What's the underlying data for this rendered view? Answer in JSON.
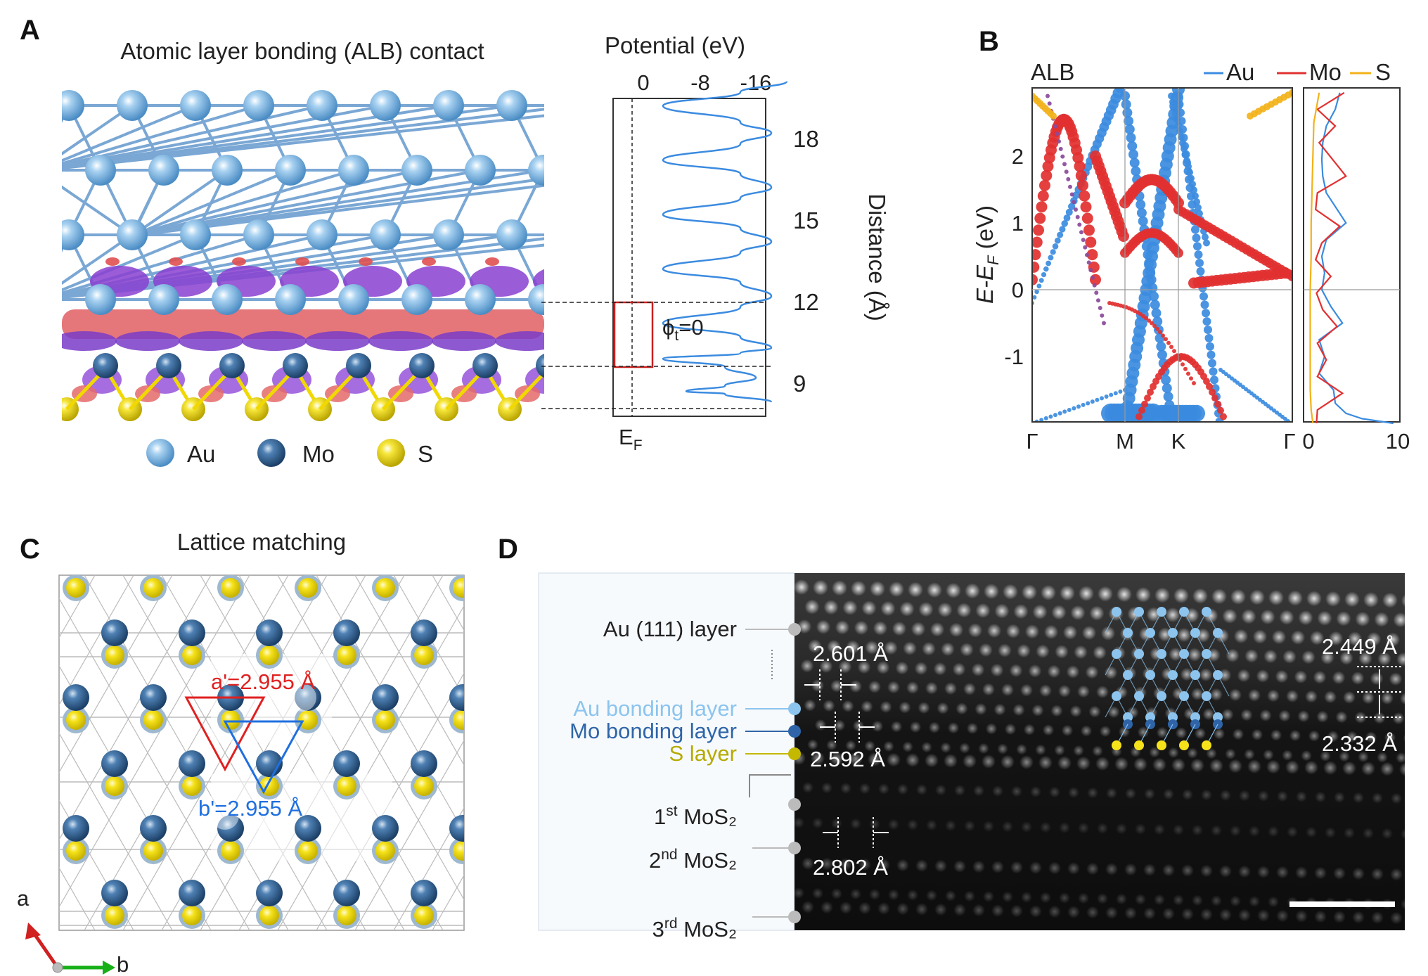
{
  "panels": {
    "a": {
      "label": "A",
      "title": "Atomic layer bonding (ALB) contact",
      "legend": [
        {
          "symbol": "Au",
          "color": "#86bde6"
        },
        {
          "symbol": "Mo",
          "color": "#2f6294"
        },
        {
          "symbol": "S",
          "color": "#f2dc00"
        }
      ],
      "potential_plot": {
        "title": "Potential (eV)",
        "top_ticks": [
          "0",
          "-8",
          "-16"
        ],
        "right_ticks": [
          "18",
          "15",
          "12",
          "9"
        ],
        "right_label": "Distance (Å)",
        "bottom_label": "E",
        "bottom_label_sub": "F",
        "annotation_main": "ϕ",
        "annotation_sub": "t",
        "annotation_tail": "=0"
      }
    },
    "b": {
      "label": "B",
      "tag": "ALB",
      "legend": [
        {
          "name": "Au",
          "color": "#3b8be0"
        },
        {
          "name": "Mo",
          "color": "#e23030"
        },
        {
          "name": "S",
          "color": "#f2b21a"
        }
      ],
      "ylabel_main": "E-E",
      "ylabel_sub": "F",
      "ylabel_tail": " (eV)",
      "y_ticks": [
        "2",
        "1",
        "0",
        "-1"
      ],
      "k_labels": [
        "Γ",
        "M",
        "K",
        "Γ"
      ],
      "dos_ticks": [
        "0",
        "10"
      ]
    },
    "c": {
      "label": "C",
      "title": "Lattice matching",
      "a_prime": "a'=2.955 Å",
      "b_prime": "b'=2.955 Å",
      "axis_a": "a",
      "axis_b": "b"
    },
    "d": {
      "label": "D",
      "layers": [
        {
          "text": "Au (111) layer",
          "sup": "",
          "after": "",
          "color": "#222222"
        },
        {
          "text": "Au bonding layer",
          "sup": "",
          "after": "",
          "color": "#8cc4ee"
        },
        {
          "text": "Mo bonding layer",
          "sup": "",
          "after": "",
          "color": "#2f65a8"
        },
        {
          "text": "S layer",
          "sup": "",
          "after": "",
          "color": "#b5aa00"
        },
        {
          "text": "1",
          "sup": "st",
          "after": " MoS₂",
          "color": "#222222"
        },
        {
          "text": "2",
          "sup": "nd",
          "after": " MoS₂",
          "color": "#222222"
        },
        {
          "text": "3",
          "sup": "rd",
          "after": " MoS₂",
          "color": "#222222"
        }
      ],
      "measurements": [
        "2.601 Å",
        "2.592 Å",
        "2.802 Å",
        "2.449 Å",
        "2.332 Å"
      ]
    }
  },
  "chart_data": [
    {
      "type": "line",
      "title": "Potential (eV)",
      "xlabel": "",
      "ylabel": "Distance (Å)",
      "xlim": [
        2,
        -20
      ],
      "ylim": [
        8,
        20
      ],
      "x_axis_position": "top",
      "y_axis_position": "right",
      "reference_lines": [
        {
          "x": 0,
          "label": "E_F"
        }
      ],
      "series": [
        {
          "x": [
            -20,
            -14,
            -4,
            -14,
            -18,
            -14,
            -4,
            -14,
            -18,
            -14,
            -4,
            -14,
            -18,
            -14,
            -4,
            -14,
            -18,
            -14,
            -4,
            -14,
            -18,
            -14,
            -4,
            -12,
            -16,
            -12,
            -7,
            -12,
            -18
          ],
          "y": [
            20.0,
            19.6,
            19.1,
            18.5,
            18.1,
            17.7,
            17.1,
            16.6,
            16.1,
            15.7,
            15.1,
            14.6,
            14.1,
            13.7,
            13.1,
            12.6,
            12.1,
            11.7,
            11.1,
            10.6,
            10.2,
            10.0,
            9.8,
            9.5,
            9.1,
            8.8,
            8.6,
            8.5,
            8.2
          ]
        }
      ]
    },
    {
      "type": "scatter",
      "tag": "ALB",
      "xlabel": "",
      "ylabel": "E-E_F (eV)",
      "ylim": [
        -2,
        3
      ],
      "x_ticks": [
        "Γ",
        "M",
        "K",
        "Γ"
      ],
      "y_ticks": [
        2,
        1,
        0,
        -1
      ],
      "legend": [
        "Au",
        "Mo",
        "S"
      ],
      "legend_position": "top-right"
    },
    {
      "type": "line",
      "xlabel": "",
      "ylabel": "",
      "xlim": [
        0,
        10
      ],
      "ylim": [
        -2,
        3
      ],
      "x_ticks": [
        0,
        10
      ],
      "series": [
        {
          "name": "Au",
          "x": [
            3.5,
            3.0,
            2.0,
            1.6,
            1.5,
            1.6,
            2.0,
            4.2,
            2.0,
            1.5,
            1.8,
            1.5,
            2.5,
            3.8,
            1.2,
            1.8,
            1.2,
            2.8,
            3.0,
            4.2,
            6.0,
            9.5
          ],
          "y": [
            2.95,
            2.7,
            2.45,
            2.2,
            1.95,
            1.7,
            1.45,
            1.0,
            0.75,
            0.5,
            0.25,
            0.0,
            -0.25,
            -0.5,
            -0.75,
            -1.0,
            -1.25,
            -1.5,
            -1.7,
            -1.85,
            -1.93,
            -2.0
          ]
        },
        {
          "name": "Mo",
          "x": [
            4.0,
            1.0,
            3.0,
            1.2,
            4.2,
            1.0,
            0.8,
            3.5,
            1.5,
            0.8,
            2.5,
            0.9,
            1.6,
            3.2,
            1.0,
            2.0,
            1.0,
            3.8,
            1.0,
            0.9
          ],
          "y": [
            2.95,
            2.7,
            2.45,
            2.2,
            1.7,
            1.45,
            1.2,
            0.95,
            0.7,
            0.45,
            0.2,
            -0.05,
            -0.3,
            -0.55,
            -0.8,
            -1.05,
            -1.3,
            -1.55,
            -1.8,
            -2.0
          ]
        },
        {
          "name": "S",
          "x": [
            1.2,
            0.6,
            0.5,
            0.4,
            0.3,
            0.3,
            0.2,
            0.2,
            0.2,
            0.2,
            0.3,
            0.5
          ],
          "y": [
            2.95,
            2.5,
            2.0,
            1.5,
            1.0,
            0.5,
            0.0,
            -0.5,
            -1.0,
            -1.5,
            -1.8,
            -2.0
          ]
        }
      ]
    }
  ]
}
